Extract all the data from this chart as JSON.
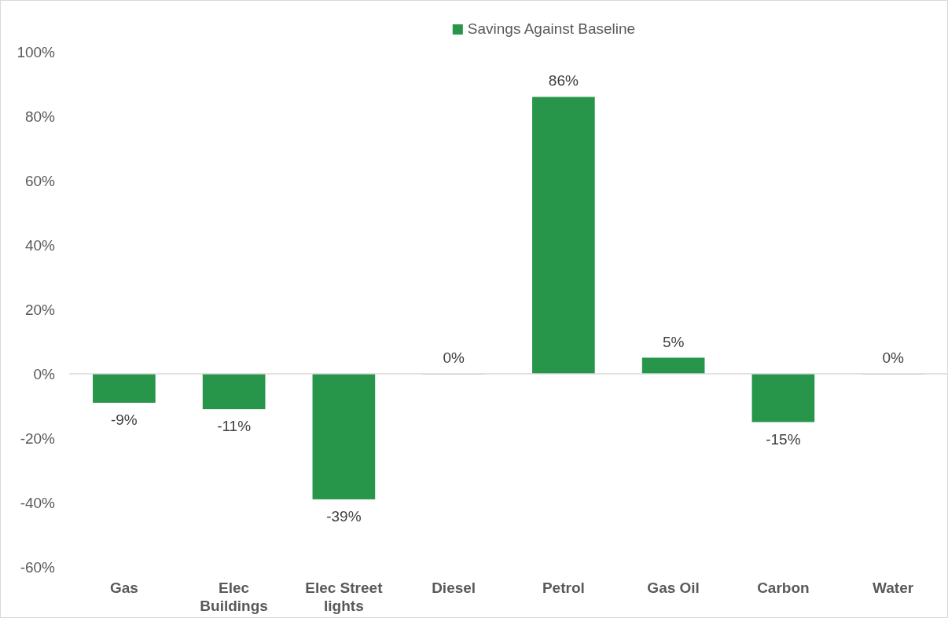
{
  "chart_data": {
    "type": "bar",
    "categories": [
      "Gas",
      "Elec Buildings",
      "Elec Street lights",
      "Diesel",
      "Petrol",
      "Gas Oil",
      "Carbon",
      "Water"
    ],
    "series": [
      {
        "name": "Savings Against Baseline",
        "color": "#27954a",
        "values": [
          -9,
          -11,
          -39,
          0,
          86,
          5,
          -15,
          0
        ],
        "value_labels": [
          "-9%",
          "-11%",
          "-39%",
          "0%",
          "86%",
          "5%",
          "-15%",
          "0%"
        ]
      }
    ],
    "ylim": [
      -60,
      100
    ],
    "yticks": [
      {
        "value": -60,
        "label": "-60%"
      },
      {
        "value": -40,
        "label": "-40%"
      },
      {
        "value": -20,
        "label": "-20%"
      },
      {
        "value": 0,
        "label": "0%"
      },
      {
        "value": 20,
        "label": "20%"
      },
      {
        "value": 40,
        "label": "40%"
      },
      {
        "value": 60,
        "label": "60%"
      },
      {
        "value": 80,
        "label": "80%"
      },
      {
        "value": 100,
        "label": "100%"
      }
    ],
    "legend": "top"
  }
}
